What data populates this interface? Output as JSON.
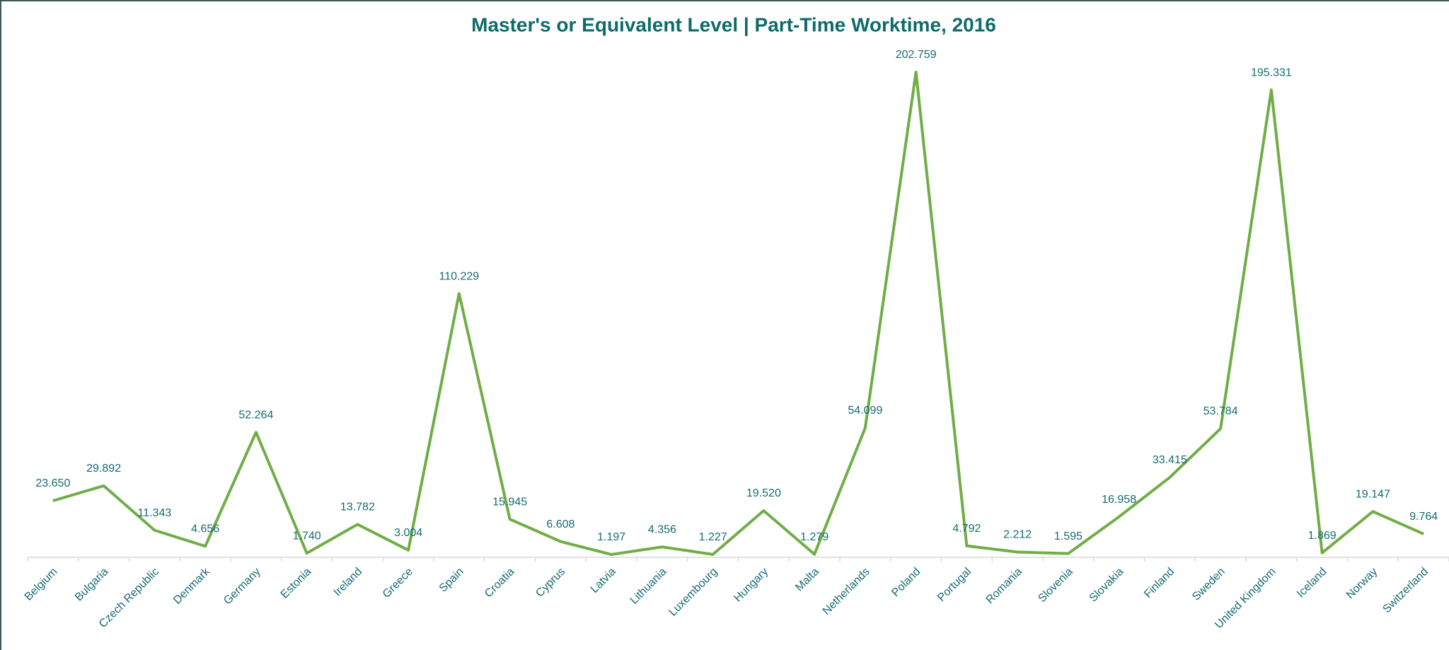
{
  "chart_data": {
    "type": "line",
    "title": "Master's or Equivalent Level | Part-Time Worktime, 2016",
    "categories": [
      "Belgium",
      "Bulgaria",
      "Czech Republic",
      "Denmark",
      "Germany",
      "Estonia",
      "Ireland",
      "Greece",
      "Spain",
      "Croatia",
      "Cyprus",
      "Latvia",
      "Lithuania",
      "Luxembourg",
      "Hungary",
      "Malta",
      "Netherlands",
      "Poland",
      "Portugal",
      "Romania",
      "Slovenia",
      "Slovakia",
      "Finland",
      "Sweden",
      "United Kingdom",
      "Iceland",
      "Norway",
      "Switzerland"
    ],
    "series": [
      {
        "name": "Part-Time Worktime",
        "color": "#70ad47",
        "values": [
          23.65,
          29.892,
          11.343,
          4.656,
          52.264,
          1.74,
          13.782,
          3.004,
          110.229,
          15.945,
          6.608,
          1.197,
          4.356,
          1.227,
          19.52,
          1.279,
          54.099,
          202.759,
          4.792,
          2.212,
          1.595,
          16.958,
          33.415,
          53.784,
          195.331,
          1.869,
          19.147,
          9.764
        ],
        "value_labels": [
          "23.650",
          "29.892",
          "11.343",
          "4.656",
          "52.264",
          "1.740",
          "13.782",
          "3.004",
          "110.229",
          "15.945",
          "6.608",
          "1.197",
          "4.356",
          "1.227",
          "19.520",
          "1.279",
          "54.099",
          "202.759",
          "4.792",
          "2.212",
          "1.595",
          "16.958",
          "33.415",
          "53.784",
          "195.331",
          "1.869",
          "19.147",
          "9.764"
        ]
      }
    ],
    "ylim": [
      0,
      210
    ]
  }
}
